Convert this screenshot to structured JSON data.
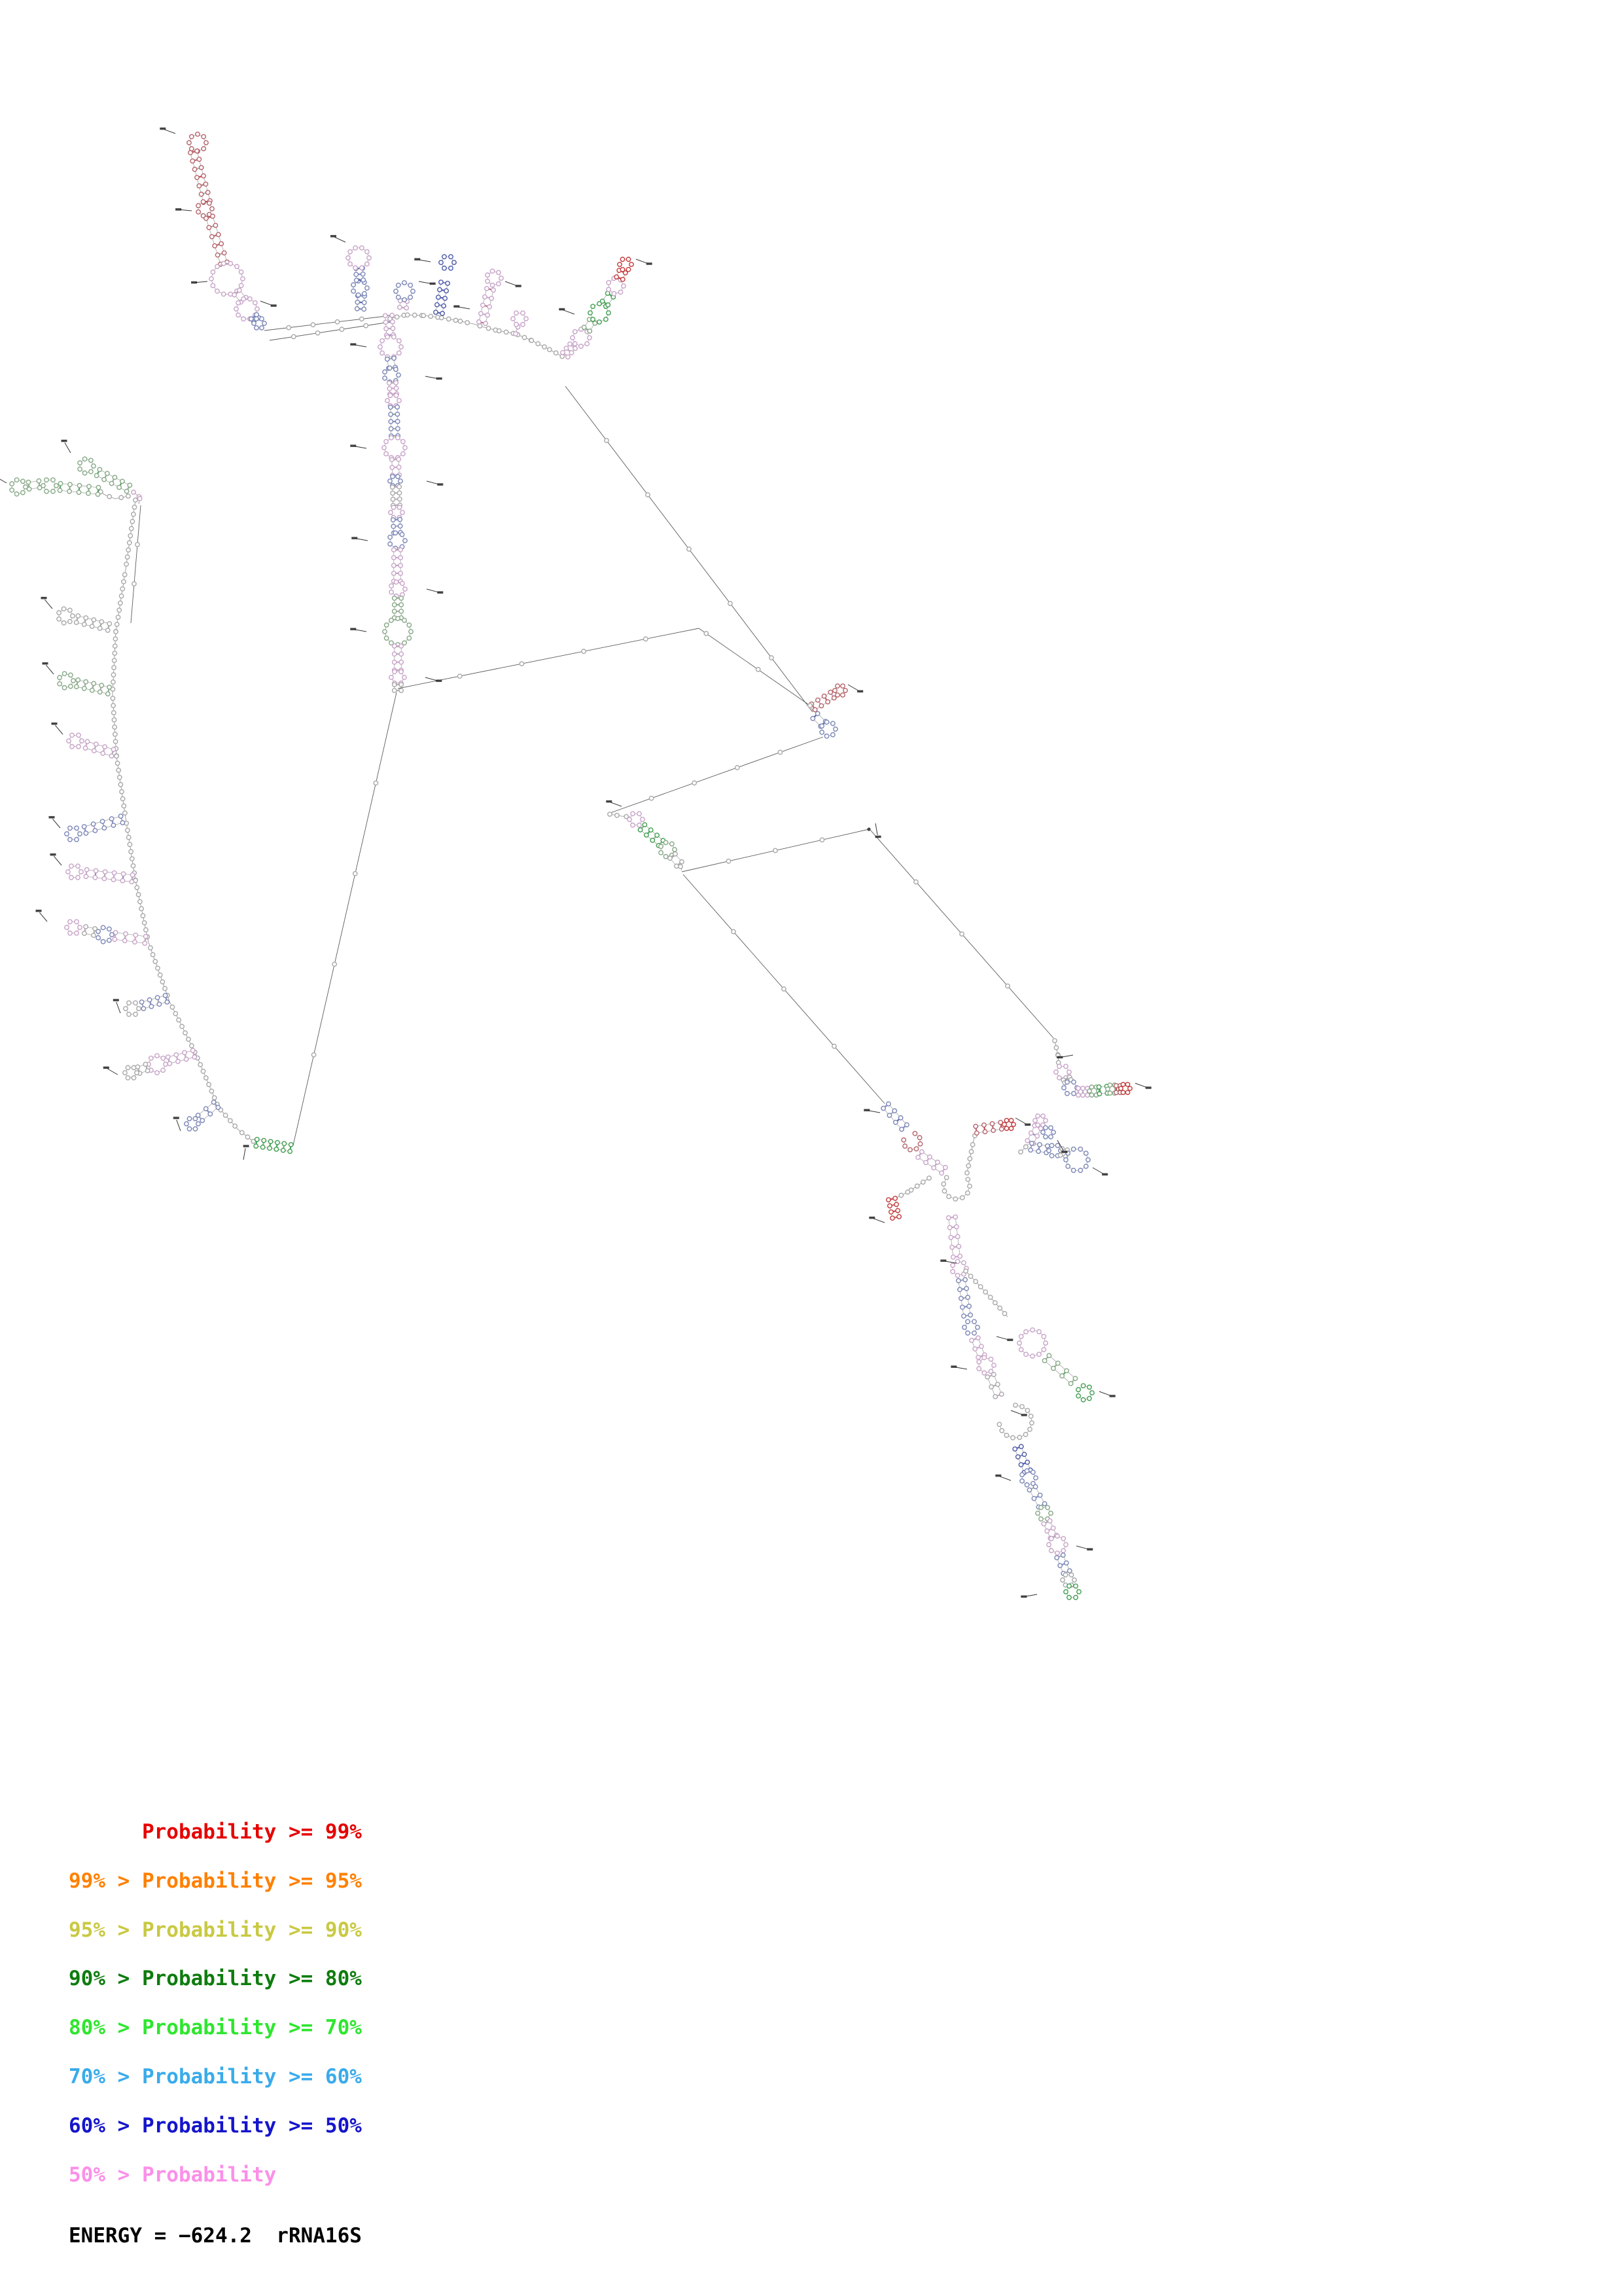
{
  "legend": {
    "items": [
      {
        "text": "      Probability >= 99%",
        "color": "#e60000"
      },
      {
        "text": "99% > Probability >= 95%",
        "color": "#ff8000"
      },
      {
        "text": "95% > Probability >= 90%",
        "color": "#c9c943"
      },
      {
        "text": "90% > Probability >= 80%",
        "color": "#0e7c0e"
      },
      {
        "text": "80% > Probability >= 70%",
        "color": "#2ee62e"
      },
      {
        "text": "70% > Probability >= 60%",
        "color": "#3aabea"
      },
      {
        "text": "60% > Probability >= 50%",
        "color": "#1515cc"
      },
      {
        "text": "50% > Probability",
        "color": "#fb90e8"
      }
    ]
  },
  "energy": {
    "label": "ENERGY",
    "value": "−624.2",
    "molecule": "rRNA16S",
    "text": "ENERGY = −624.2  rRNA16S"
  }
}
